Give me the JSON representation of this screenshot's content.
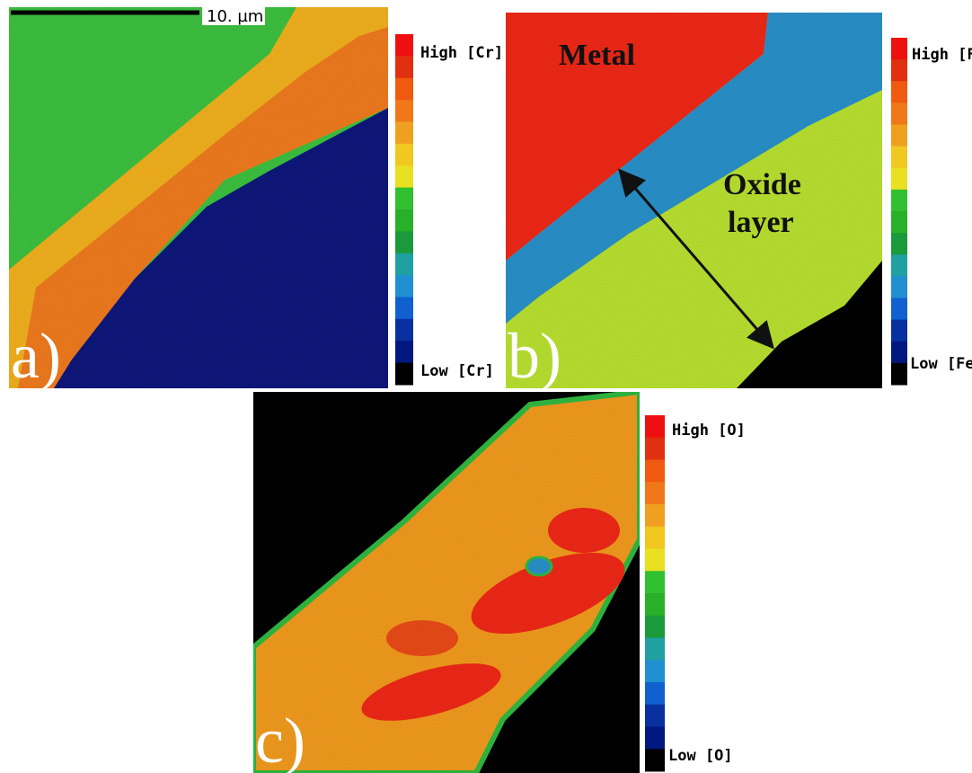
{
  "scale_bar": {
    "label": "10. µm"
  },
  "panels": [
    {
      "label": "a)",
      "scale_high": "High [Cr]",
      "scale_low": "Low [Cr]"
    },
    {
      "label": "b)",
      "scale_high": "High [Fe]",
      "scale_low": "Low [Fe]",
      "annotations": {
        "metal": "Metal",
        "oxide": [
          "Oxide",
          "layer"
        ]
      }
    },
    {
      "label": "c)",
      "scale_high": "High [O]",
      "scale_low": "Low [O]"
    }
  ]
}
